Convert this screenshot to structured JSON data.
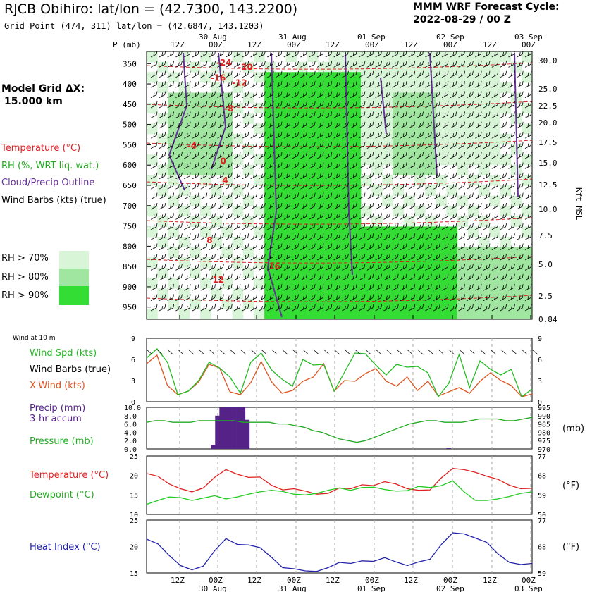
{
  "header": {
    "title": "RJCB Obihiro:  lat/lon = (42.7300, 143.2200)",
    "subtitle": "Grid Point (474, 311) lat/lon = (42.6847, 143.1203)",
    "cycle_line1": "MMM WRF Forecast Cycle:",
    "cycle_line2": "2022-08-29 / 00  Z",
    "grid_line1": "Model Grid ΔX:",
    "grid_line2": "15.000 km"
  },
  "legend": {
    "temperature": "Temperature (°C)",
    "rh": "RH (%, WRT liq. wat.)",
    "cloud": "Cloud/Precip Outline",
    "wind": "Wind Barbs (kts) (true)",
    "rh70": "RH > 70%",
    "rh80": "RH > 80%",
    "rh90": "RH > 90%",
    "wind10m": "Wind at 10 m",
    "wspd": "Wind Spd (kts)",
    "wbarbs": "Wind Barbs (true)",
    "xwind": "X-Wind (kts)",
    "precip1": "Precip (mm)",
    "precip2": "3-hr accum",
    "pressure": "Pressure (mb)",
    "temp2": "Temperature (°C)",
    "dewpoint": "Dewpoint (°C)",
    "heat": "Heat Index (°C)"
  },
  "colors": {
    "rh70": "#d8f5d8",
    "rh80": "#a0e6a0",
    "rh90": "#33dd33",
    "temperature": "#dd2222",
    "cloud": "#663399",
    "wind_speed": "#22bb22",
    "xwind": "#dd5522",
    "precip": "#552288",
    "pressure": "#22aa22",
    "dewpoint": "#22cc22",
    "heat_index": "#2222aa"
  },
  "chart_data": [
    {
      "type": "heatmap",
      "name": "cross_section",
      "x_top_labels": [
        "30 Aug",
        "31 Aug",
        "01 Sep",
        "02 Sep",
        "03 Sep"
      ],
      "x_hour_labels": [
        "12Z",
        "00Z",
        "12Z",
        "00Z",
        "12Z",
        "00Z",
        "12Z",
        "00Z",
        "12Z",
        "00Z"
      ],
      "y_label": "P (mb)",
      "pressure_levels": [
        350,
        400,
        450,
        500,
        550,
        600,
        650,
        700,
        750,
        800,
        850,
        900,
        950
      ],
      "kft_levels": [
        "30.0",
        "25.0",
        "22.5",
        "20.0",
        "17.5",
        "15.0",
        "12.5",
        "10.0",
        "7.5",
        "5.0",
        "2.5",
        "0.84"
      ],
      "right_label": "Kft MSL",
      "temperature_labels": [
        {
          "text": "-24",
          "t": 24.5,
          "p": 355
        },
        {
          "text": "-20",
          "t": 30,
          "p": 366
        },
        {
          "text": "-16",
          "t": 23,
          "p": 392
        },
        {
          "text": "-12",
          "t": 28.5,
          "p": 404
        },
        {
          "text": "-8",
          "t": 26.5,
          "p": 468
        },
        {
          "text": "-4",
          "t": 17,
          "p": 560
        },
        {
          "text": "0",
          "t": 25.5,
          "p": 597
        },
        {
          "text": "4",
          "t": 26,
          "p": 645
        },
        {
          "text": "8",
          "t": 22,
          "p": 792
        },
        {
          "text": "12",
          "t": 23.5,
          "p": 890
        },
        {
          "text": "16",
          "t": 38,
          "p": 857
        }
      ]
    },
    {
      "type": "line",
      "name": "wind",
      "ylim": [
        0,
        9
      ],
      "yticks": [
        3,
        6,
        9
      ],
      "series": [
        {
          "name": "Wind Spd (kts)",
          "values": [
            6.2,
            7.5,
            5.6,
            1.0,
            1.5,
            3.0,
            5.6,
            4.8,
            3.5,
            1.2,
            5.6,
            6.9,
            4.5,
            3.2,
            2.2,
            6.0,
            5.2,
            5.3,
            1.5,
            4.2,
            6.9,
            6.8,
            5.2,
            3.8,
            5.3,
            4.9,
            5.0,
            4.1,
            0.7,
            2.6,
            6.7,
            2.0,
            5.8,
            4.6,
            3.8,
            4.6,
            0.7,
            1.8
          ]
        },
        {
          "name": "X-Wind (kts)",
          "values": [
            5.4,
            6.6,
            2.3,
            1.0,
            1.5,
            2.8,
            5.3,
            4.8,
            1.4,
            1.0,
            2.7,
            5.7,
            2.8,
            1.2,
            1.6,
            2.9,
            3.5,
            5.4,
            1.5,
            3.0,
            2.9,
            4.0,
            4.7,
            2.9,
            2.2,
            3.5,
            1.6,
            2.9,
            0.8,
            1.4,
            2.0,
            1.2,
            2.9,
            4.1,
            3.0,
            2.3,
            0.7,
            1.1
          ]
        }
      ]
    },
    {
      "type": "bar",
      "name": "precip",
      "ylim": [
        0,
        10
      ],
      "yticks": [
        "0.0",
        "2.0",
        "4.0",
        "6.0",
        "8.0",
        "10.0"
      ],
      "right_yticks": [
        "970",
        "975",
        "980",
        "985",
        "990",
        "995"
      ],
      "right_unit": "(mb)",
      "values": [
        0,
        0,
        0,
        0,
        0,
        0,
        0,
        0,
        0,
        0,
        0,
        0,
        0,
        0,
        0,
        1,
        8,
        10,
        10,
        10,
        10,
        10,
        10,
        7,
        0,
        0,
        0,
        0,
        0,
        0,
        0,
        0,
        0,
        0,
        0,
        0,
        0,
        0,
        0,
        0,
        0,
        0,
        0,
        0,
        0,
        0,
        0,
        0,
        0,
        0,
        0,
        0,
        0,
        0,
        0,
        0,
        0,
        0,
        0,
        0,
        0,
        0,
        0,
        0,
        0,
        0,
        0,
        0,
        0,
        0,
        0.2,
        0,
        0,
        0,
        0,
        0,
        0,
        0,
        0,
        0,
        0,
        0,
        0,
        0,
        0,
        0,
        0,
        0,
        0,
        0
      ],
      "pressure_mb": [
        986,
        987,
        987,
        986,
        986,
        986,
        987,
        987,
        987,
        987,
        987,
        986,
        986,
        986,
        986,
        985,
        985,
        984,
        983,
        981,
        980,
        978,
        976,
        975,
        974,
        975,
        977,
        979,
        981,
        983,
        985,
        986,
        987,
        987,
        986,
        986,
        986,
        987,
        988,
        988,
        988,
        987,
        987,
        988,
        989
      ]
    },
    {
      "type": "line",
      "name": "temperature",
      "ylim": [
        10,
        25
      ],
      "yticks": [
        10,
        15,
        20,
        25
      ],
      "right_yticks": [
        50,
        59,
        68,
        77
      ],
      "right_unit": "(°F)",
      "series": [
        {
          "name": "Temperature (°C)",
          "values": [
            20.5,
            19.8,
            17.8,
            16.6,
            15.8,
            16.8,
            19.5,
            21.5,
            20.3,
            19.5,
            19.6,
            17.5,
            16.3,
            16.6,
            16.0,
            15.2,
            15.4,
            16.8,
            16.6,
            17.6,
            17.4,
            18.4,
            17.8,
            16.6,
            16.2,
            16.3,
            19.4,
            21.8,
            21.5,
            20.8,
            19.8,
            19.0,
            17.5,
            16.6,
            16.7
          ]
        },
        {
          "name": "Dewpoint (°C)",
          "values": [
            12.6,
            13.6,
            14.5,
            14.3,
            13.6,
            14.2,
            14.8,
            14.0,
            14.5,
            15.2,
            15.8,
            16.2,
            15.9,
            15.2,
            15.0,
            15.4,
            16.2,
            16.8,
            16.2,
            16.9,
            17.0,
            16.4,
            16.0,
            16.1,
            17.2,
            16.9,
            17.4,
            18.6,
            15.8,
            13.6,
            13.6,
            14.0,
            14.6,
            15.4,
            15.8
          ]
        }
      ]
    },
    {
      "type": "line",
      "name": "heat_index",
      "ylim": [
        15,
        25
      ],
      "yticks": [
        15,
        20,
        25
      ],
      "right_yticks": [
        59,
        68,
        77
      ],
      "right_unit": "(°F)",
      "series": [
        {
          "name": "Heat Index (°C)",
          "values": [
            21.4,
            20.5,
            18.3,
            16.4,
            15.6,
            16.3,
            19.2,
            21.5,
            20.4,
            20.3,
            19.8,
            18.0,
            16.0,
            15.8,
            15.4,
            15.3,
            16.0,
            17.0,
            16.8,
            17.3,
            17.2,
            17.9,
            17.1,
            16.4,
            17.1,
            17.6,
            20.4,
            22.6,
            22.4,
            21.6,
            20.8,
            18.6,
            17.0,
            16.6,
            16.8
          ]
        }
      ]
    }
  ]
}
